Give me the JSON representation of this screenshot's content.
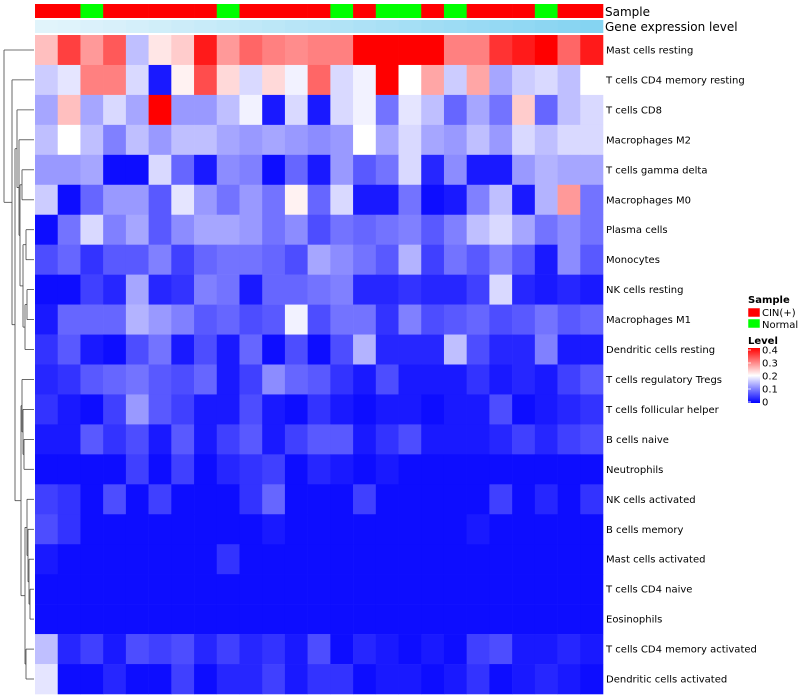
{
  "chart_data": {
    "type": "heatmap",
    "title": "",
    "annotation_labels": {
      "sample": "Sample",
      "gene_expression": "Gene expression level"
    },
    "legend": {
      "sample_title": "Sample",
      "sample_entries": [
        {
          "name": "CIN(+)",
          "color": "#ff0000"
        },
        {
          "name": "Normal",
          "color": "#00ff00"
        }
      ],
      "level_title": "Level",
      "level_ticks": [
        "0.4",
        "0.3",
        "0.2",
        "0.1",
        "0"
      ],
      "level_range": [
        0,
        0.4
      ]
    },
    "colors": {
      "low": "#0000ff",
      "mid": "#ffffff",
      "high": "#ff0000",
      "cin": "#ff0000",
      "normal": "#00ff00"
    },
    "sample_groups": [
      "CIN(+)",
      "CIN(+)",
      "Normal",
      "CIN(+)",
      "CIN(+)",
      "CIN(+)",
      "CIN(+)",
      "CIN(+)",
      "Normal",
      "CIN(+)",
      "CIN(+)",
      "CIN(+)",
      "CIN(+)",
      "Normal",
      "CIN(+)",
      "Normal",
      "Normal",
      "CIN(+)",
      "Normal",
      "CIN(+)",
      "CIN(+)",
      "CIN(+)",
      "Normal",
      "CIN(+)",
      "CIN(+)"
    ],
    "gene_expression_levels": [
      0.05,
      0.07,
      0.1,
      0.12,
      0.15,
      0.18,
      0.21,
      0.24,
      0.27,
      0.3,
      0.33,
      0.36,
      0.39,
      0.42,
      0.45,
      0.48,
      0.51,
      0.54,
      0.57,
      0.6,
      0.63,
      0.66,
      0.69,
      0.72,
      0.75
    ],
    "rows": [
      "Mast cells resting",
      "T cells CD4 memory resting",
      "T cells CD8",
      "Macrophages M2",
      "T cells gamma delta",
      "Macrophages M0",
      "Plasma cells",
      "Monocytes",
      "NK cells resting",
      "Macrophages M1",
      "Dendritic cells resting",
      "T cells regulatory  Tregs",
      "T cells follicular helper",
      "B cells naive",
      "Neutrophils",
      "NK cells activated",
      "B cells memory",
      "Mast cells activated",
      "T cells CD4 naive",
      "Eosinophils",
      "T cells CD4 memory activated",
      "Dendritic cells activated"
    ],
    "values": [
      [
        0.25,
        0.35,
        0.28,
        0.33,
        0.15,
        0.22,
        0.24,
        0.38,
        0.28,
        0.32,
        0.3,
        0.29,
        0.3,
        0.3,
        0.4,
        0.4,
        0.4,
        0.4,
        0.3,
        0.3,
        0.36,
        0.38,
        0.4,
        0.32,
        0.38
      ],
      [
        0.16,
        0.18,
        0.3,
        0.3,
        0.17,
        0.02,
        0.21,
        0.34,
        0.23,
        0.17,
        0.23,
        0.19,
        0.32,
        0.17,
        0.19,
        0.4,
        0.2,
        0.27,
        0.16,
        0.27,
        0.13,
        0.16,
        0.17,
        0.15,
        0.2
      ],
      [
        0.13,
        0.25,
        0.13,
        0.17,
        0.13,
        0.4,
        0.12,
        0.12,
        0.15,
        0.19,
        0.02,
        0.17,
        0.02,
        0.17,
        0.19,
        0.09,
        0.18,
        0.15,
        0.08,
        0.13,
        0.09,
        0.24,
        0.08,
        0.15,
        0.17
      ],
      [
        0.15,
        0.2,
        0.15,
        0.1,
        0.15,
        0.12,
        0.15,
        0.15,
        0.13,
        0.12,
        0.13,
        0.12,
        0.11,
        0.12,
        0.2,
        0.13,
        0.17,
        0.13,
        0.12,
        0.15,
        0.12,
        0.17,
        0.15,
        0.17,
        0.17
      ],
      [
        0.12,
        0.12,
        0.13,
        0.01,
        0.01,
        0.17,
        0.08,
        0.02,
        0.11,
        0.1,
        0.01,
        0.08,
        0.02,
        0.12,
        0.07,
        0.09,
        0.17,
        0.03,
        0.11,
        0.02,
        0.02,
        0.12,
        0.14,
        0.13,
        0.13
      ],
      [
        0.16,
        0.01,
        0.08,
        0.12,
        0.12,
        0.07,
        0.18,
        0.12,
        0.09,
        0.12,
        0.09,
        0.21,
        0.08,
        0.17,
        0.02,
        0.02,
        0.09,
        0.01,
        0.02,
        0.1,
        0.15,
        0.02,
        0.14,
        0.28,
        0.09
      ],
      [
        0.01,
        0.09,
        0.17,
        0.1,
        0.13,
        0.07,
        0.11,
        0.13,
        0.13,
        0.12,
        0.09,
        0.11,
        0.06,
        0.09,
        0.08,
        0.09,
        0.1,
        0.07,
        0.1,
        0.15,
        0.17,
        0.13,
        0.09,
        0.11,
        0.09
      ],
      [
        0.06,
        0.08,
        0.04,
        0.07,
        0.07,
        0.1,
        0.05,
        0.08,
        0.09,
        0.09,
        0.08,
        0.06,
        0.13,
        0.11,
        0.09,
        0.07,
        0.14,
        0.05,
        0.09,
        0.07,
        0.1,
        0.07,
        0.02,
        0.11,
        0.07
      ],
      [
        0.01,
        0.01,
        0.05,
        0.03,
        0.13,
        0.03,
        0.04,
        0.1,
        0.09,
        0.02,
        0.08,
        0.08,
        0.09,
        0.1,
        0.03,
        0.03,
        0.04,
        0.03,
        0.03,
        0.05,
        0.17,
        0.03,
        0.02,
        0.03,
        0.02
      ],
      [
        0.02,
        0.08,
        0.08,
        0.08,
        0.14,
        0.12,
        0.1,
        0.07,
        0.08,
        0.06,
        0.07,
        0.19,
        0.06,
        0.09,
        0.09,
        0.04,
        0.1,
        0.06,
        0.07,
        0.08,
        0.06,
        0.07,
        0.09,
        0.07,
        0.08
      ],
      [
        0.04,
        0.07,
        0.02,
        0.01,
        0.06,
        0.09,
        0.02,
        0.06,
        0.02,
        0.08,
        0.01,
        0.06,
        0.01,
        0.06,
        0.14,
        0.03,
        0.03,
        0.03,
        0.15,
        0.06,
        0.03,
        0.03,
        0.1,
        0.02,
        0.02
      ],
      [
        0.03,
        0.04,
        0.07,
        0.08,
        0.09,
        0.07,
        0.06,
        0.08,
        0.02,
        0.05,
        0.11,
        0.08,
        0.07,
        0.04,
        0.02,
        0.06,
        0.02,
        0.02,
        0.02,
        0.04,
        0.02,
        0.03,
        0.02,
        0.05,
        0.07
      ],
      [
        0.04,
        0.02,
        0.01,
        0.05,
        0.12,
        0.07,
        0.05,
        0.02,
        0.02,
        0.06,
        0.02,
        0.01,
        0.04,
        0.02,
        0.01,
        0.02,
        0.02,
        0.01,
        0.02,
        0.02,
        0.06,
        0.01,
        0.02,
        0.03,
        0.04
      ],
      [
        0.02,
        0.02,
        0.07,
        0.04,
        0.06,
        0.02,
        0.07,
        0.02,
        0.05,
        0.07,
        0.02,
        0.05,
        0.07,
        0.07,
        0.02,
        0.04,
        0.06,
        0.02,
        0.02,
        0.02,
        0.03,
        0.05,
        0.03,
        0.05,
        0.06
      ],
      [
        0.01,
        0.01,
        0.01,
        0.01,
        0.05,
        0.01,
        0.05,
        0.01,
        0.03,
        0.04,
        0.05,
        0.01,
        0.03,
        0.02,
        0.01,
        0.02,
        0.01,
        0.01,
        0.01,
        0.01,
        0.01,
        0.01,
        0.01,
        0.01,
        0.01
      ],
      [
        0.05,
        0.04,
        0.01,
        0.06,
        0.01,
        0.05,
        0.01,
        0.01,
        0.01,
        0.04,
        0.08,
        0.01,
        0.01,
        0.01,
        0.05,
        0.01,
        0.01,
        0.01,
        0.01,
        0.01,
        0.05,
        0.01,
        0.03,
        0.01,
        0.04
      ],
      [
        0.06,
        0.04,
        0.01,
        0.01,
        0.01,
        0.01,
        0.01,
        0.01,
        0.01,
        0.01,
        0.02,
        0.01,
        0.01,
        0.01,
        0.01,
        0.01,
        0.01,
        0.01,
        0.01,
        0.02,
        0.01,
        0.01,
        0.01,
        0.01,
        0.01
      ],
      [
        0.02,
        0.01,
        0.01,
        0.01,
        0.01,
        0.01,
        0.01,
        0.01,
        0.04,
        0.01,
        0.01,
        0.01,
        0.01,
        0.01,
        0.01,
        0.01,
        0.01,
        0.01,
        0.01,
        0.01,
        0.01,
        0.01,
        0.01,
        0.01,
        0.01
      ],
      [
        0.01,
        0.01,
        0.01,
        0.01,
        0.01,
        0.01,
        0.01,
        0.01,
        0.01,
        0.01,
        0.01,
        0.01,
        0.01,
        0.01,
        0.01,
        0.01,
        0.01,
        0.01,
        0.01,
        0.01,
        0.01,
        0.01,
        0.01,
        0.01,
        0.01
      ],
      [
        0.01,
        0.01,
        0.01,
        0.01,
        0.01,
        0.01,
        0.01,
        0.01,
        0.01,
        0.01,
        0.01,
        0.01,
        0.01,
        0.01,
        0.01,
        0.01,
        0.01,
        0.01,
        0.01,
        0.01,
        0.01,
        0.01,
        0.01,
        0.01,
        0.01
      ],
      [
        0.15,
        0.03,
        0.05,
        0.02,
        0.06,
        0.05,
        0.06,
        0.03,
        0.05,
        0.03,
        0.04,
        0.02,
        0.06,
        0.01,
        0.03,
        0.02,
        0.01,
        0.02,
        0.01,
        0.05,
        0.06,
        0.02,
        0.02,
        0.03,
        0.02
      ],
      [
        0.18,
        0.01,
        0.01,
        0.03,
        0.01,
        0.01,
        0.05,
        0.01,
        0.03,
        0.03,
        0.05,
        0.02,
        0.04,
        0.04,
        0.01,
        0.02,
        0.02,
        0.01,
        0.02,
        0.04,
        0.01,
        0.02,
        0.03,
        0.02,
        0.01
      ]
    ]
  }
}
